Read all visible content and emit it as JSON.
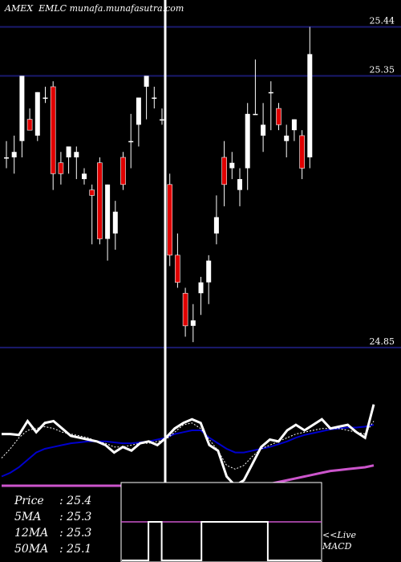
{
  "header": {
    "exchange": "AMEX",
    "symbol": "EMLC",
    "site": "munafa.munafasutra.com"
  },
  "stats": [
    {
      "label": "Price",
      "value": ": 25.4"
    },
    {
      "label": "5MA",
      "value": ": 25.3"
    },
    {
      "label": "12MA",
      "value": ": 25.3"
    },
    {
      "label": "50MA",
      "value": ": 25.1"
    }
  ],
  "macd_link": {
    "line1": "<<Live",
    "line2": "MACD"
  },
  "colors": {
    "up": "#ffffff",
    "down": "#e00000",
    "level_line": "#1a1a6e",
    "ma_fast": "#ffffff",
    "ma_mid": "#0000cc",
    "ma_slow": "#cc55cc"
  },
  "chart_data": {
    "type": "candlestick",
    "price_range": [
      24.81,
      25.46
    ],
    "price_levels": [
      {
        "value": 25.44,
        "label": "25.44"
      },
      {
        "value": 25.35,
        "label": "25.35"
      },
      {
        "value": 24.85,
        "label": "24.85"
      }
    ],
    "candles": [
      {
        "o": 25.2,
        "h": 25.23,
        "l": 25.18,
        "c": 25.2
      },
      {
        "o": 25.2,
        "h": 25.24,
        "l": 25.17,
        "c": 25.21
      },
      {
        "o": 25.23,
        "h": 25.35,
        "l": 25.2,
        "c": 25.35
      },
      {
        "o": 25.27,
        "h": 25.29,
        "l": 25.25,
        "c": 25.25
      },
      {
        "o": 25.24,
        "h": 25.32,
        "l": 25.23,
        "c": 25.32
      },
      {
        "o": 25.31,
        "h": 25.33,
        "l": 25.3,
        "c": 25.31
      },
      {
        "o": 25.33,
        "h": 25.34,
        "l": 25.14,
        "c": 25.17
      },
      {
        "o": 25.19,
        "h": 25.21,
        "l": 25.15,
        "c": 25.17
      },
      {
        "o": 25.2,
        "h": 25.22,
        "l": 25.17,
        "c": 25.22
      },
      {
        "o": 25.2,
        "h": 25.22,
        "l": 25.16,
        "c": 25.21
      },
      {
        "o": 25.16,
        "h": 25.18,
        "l": 25.15,
        "c": 25.17
      },
      {
        "o": 25.14,
        "h": 25.15,
        "l": 25.04,
        "c": 25.13
      },
      {
        "o": 25.19,
        "h": 25.2,
        "l": 25.04,
        "c": 25.05
      },
      {
        "o": 25.05,
        "h": 25.15,
        "l": 25.01,
        "c": 25.15
      },
      {
        "o": 25.06,
        "h": 25.12,
        "l": 25.03,
        "c": 25.1
      },
      {
        "o": 25.2,
        "h": 25.21,
        "l": 25.14,
        "c": 25.15
      },
      {
        "o": 25.23,
        "h": 25.28,
        "l": 25.18,
        "c": 25.23
      },
      {
        "o": 25.26,
        "h": 25.31,
        "l": 25.22,
        "c": 25.31
      },
      {
        "o": 25.33,
        "h": 25.35,
        "l": 25.27,
        "c": 25.35
      },
      {
        "o": 25.31,
        "h": 25.33,
        "l": 25.29,
        "c": 25.31
      },
      {
        "o": 25.27,
        "h": 25.29,
        "l": 25.26,
        "c": 25.27
      },
      {
        "o": 25.15,
        "h": 25.17,
        "l": 25.0,
        "c": 25.02
      },
      {
        "o": 25.02,
        "h": 25.06,
        "l": 24.96,
        "c": 24.97
      },
      {
        "o": 24.95,
        "h": 24.96,
        "l": 24.87,
        "c": 24.89
      },
      {
        "o": 24.89,
        "h": 24.93,
        "l": 24.86,
        "c": 24.9
      },
      {
        "o": 24.95,
        "h": 24.98,
        "l": 24.91,
        "c": 24.97
      },
      {
        "o": 24.97,
        "h": 25.02,
        "l": 24.93,
        "c": 25.01
      },
      {
        "o": 25.06,
        "h": 25.13,
        "l": 25.04,
        "c": 25.09
      },
      {
        "o": 25.2,
        "h": 25.23,
        "l": 25.11,
        "c": 25.15
      },
      {
        "o": 25.18,
        "h": 25.21,
        "l": 25.16,
        "c": 25.19
      },
      {
        "o": 25.14,
        "h": 25.18,
        "l": 25.11,
        "c": 25.16
      },
      {
        "o": 25.18,
        "h": 25.3,
        "l": 25.14,
        "c": 25.28
      },
      {
        "o": 25.28,
        "h": 25.38,
        "l": 25.28,
        "c": 25.28
      },
      {
        "o": 25.24,
        "h": 25.3,
        "l": 25.21,
        "c": 25.26
      },
      {
        "o": 25.32,
        "h": 25.34,
        "l": 25.25,
        "c": 25.32
      },
      {
        "o": 25.29,
        "h": 25.3,
        "l": 25.25,
        "c": 25.26
      },
      {
        "o": 25.23,
        "h": 25.26,
        "l": 25.2,
        "c": 25.24
      },
      {
        "o": 25.25,
        "h": 25.27,
        "l": 25.23,
        "c": 25.27
      },
      {
        "o": 25.24,
        "h": 25.25,
        "l": 25.16,
        "c": 25.18
      },
      {
        "o": 25.2,
        "h": 25.44,
        "l": 25.18,
        "c": 25.39
      }
    ],
    "oscillator": {
      "fast": [
        0.56,
        0.56,
        0.55,
        0.7,
        0.58,
        0.68,
        0.7,
        0.62,
        0.54,
        0.52,
        0.5,
        0.48,
        0.44,
        0.36,
        0.42,
        0.38,
        0.46,
        0.48,
        0.44,
        0.52,
        0.62,
        0.68,
        0.72,
        0.68,
        0.44,
        0.38,
        0.1,
        0.0,
        0.06,
        0.24,
        0.42,
        0.5,
        0.48,
        0.6,
        0.66,
        0.6,
        0.66,
        0.72,
        0.62,
        0.64,
        0.66,
        0.58,
        0.52,
        0.88
      ],
      "signal": [
        0.3,
        0.4,
        0.52,
        0.6,
        0.62,
        0.64,
        0.62,
        0.58,
        0.56,
        0.54,
        0.52,
        0.48,
        0.46,
        0.42,
        0.42,
        0.44,
        0.46,
        0.46,
        0.48,
        0.5,
        0.58,
        0.66,
        0.68,
        0.62,
        0.5,
        0.38,
        0.22,
        0.18,
        0.22,
        0.32,
        0.4,
        0.44,
        0.48,
        0.52,
        0.56,
        0.58,
        0.6,
        0.62,
        0.62,
        0.62,
        0.6,
        0.58,
        0.56,
        0.7
      ],
      "mid": [
        0.1,
        0.14,
        0.2,
        0.28,
        0.36,
        0.4,
        0.42,
        0.44,
        0.46,
        0.47,
        0.48,
        0.48,
        0.48,
        0.47,
        0.46,
        0.46,
        0.47,
        0.48,
        0.5,
        0.52,
        0.56,
        0.58,
        0.6,
        0.6,
        0.52,
        0.46,
        0.4,
        0.36,
        0.36,
        0.38,
        0.4,
        0.42,
        0.45,
        0.48,
        0.52,
        0.55,
        0.57,
        0.59,
        0.61,
        0.62,
        0.63,
        0.63,
        0.64,
        0.66
      ],
      "slow": [
        0.0,
        0.0,
        0.0,
        0.0,
        0.0,
        0.0,
        0.0,
        0.0,
        0.0,
        0.0,
        0.0,
        0.0,
        0.0,
        0.0,
        0.0,
        0.0,
        0.0,
        0.0,
        0.0,
        0.0,
        0.0,
        0.0,
        0.0,
        0.0,
        0.0,
        0.0,
        0.0,
        0.0,
        0.0,
        0.0,
        0.01,
        0.02,
        0.04,
        0.06,
        0.08,
        0.1,
        0.12,
        0.14,
        0.16,
        0.17,
        0.18,
        0.19,
        0.2,
        0.22
      ]
    },
    "macd_steps": [
      0,
      0,
      1,
      0,
      0,
      0,
      1,
      1,
      1,
      1,
      1,
      0,
      0,
      0,
      0
    ]
  }
}
